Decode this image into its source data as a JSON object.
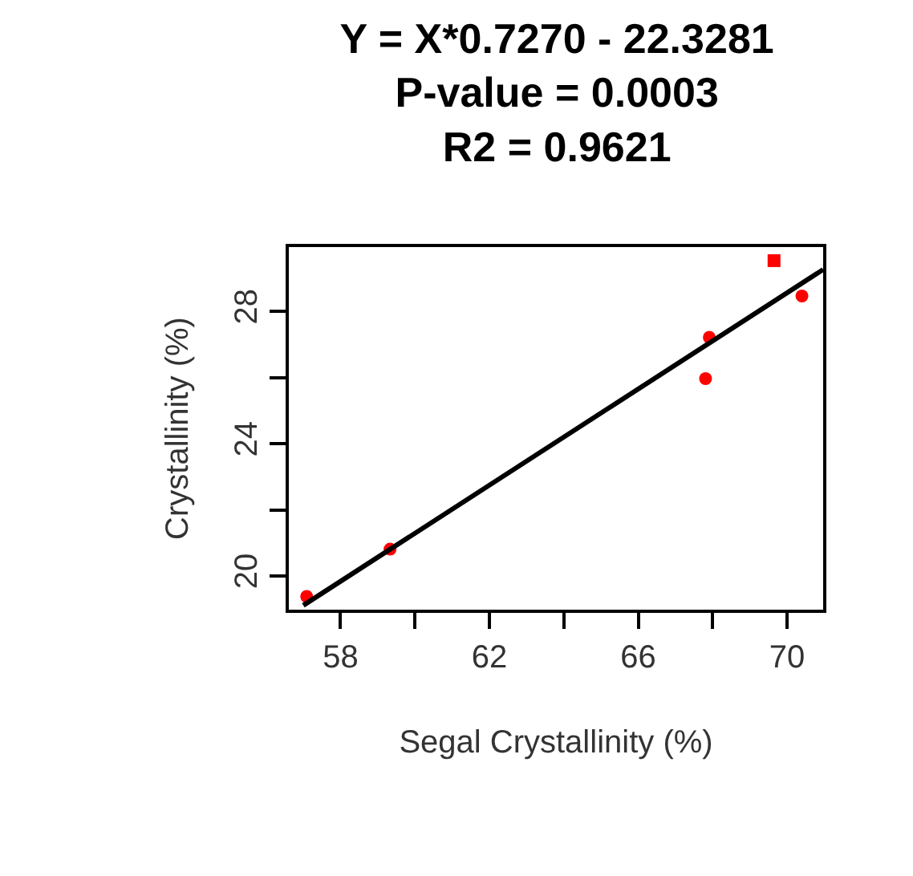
{
  "chart_data": {
    "type": "scatter",
    "title": "Y = X*0.7270 - 22.3281\nP-value = 0.0003\nR2 = 0.9621",
    "xlabel": "Segal Crystallinity (%)",
    "ylabel": "Crystallinity (%)",
    "xlim": [
      56.61,
      70.97
    ],
    "ylim": [
      18.98,
      29.95
    ],
    "xticks": [
      58,
      {
        "value": 60,
        "label": null
      },
      62,
      {
        "value": 64,
        "label": null
      },
      66,
      {
        "value": 68,
        "label": null
      },
      70
    ],
    "yticks": [
      20,
      {
        "value": 22,
        "label": null
      },
      24,
      {
        "value": 26,
        "label": null
      },
      28
    ],
    "series": [
      {
        "marker": "circle",
        "color": "#ff0000",
        "x": [
          57.09,
          59.33,
          67.91,
          67.81,
          70.4
        ],
        "values": [
          19.38,
          20.81,
          27.22,
          25.97,
          28.47
        ]
      },
      {
        "marker": "square",
        "color": "#ff0000",
        "x": [
          69.65
        ],
        "values": [
          29.54
        ]
      },
      {
        "type": "line",
        "line_style": "solid",
        "color": "#000000",
        "x": [
          57.0,
          70.97
        ],
        "values": [
          19.11,
          29.27
        ]
      }
    ]
  }
}
